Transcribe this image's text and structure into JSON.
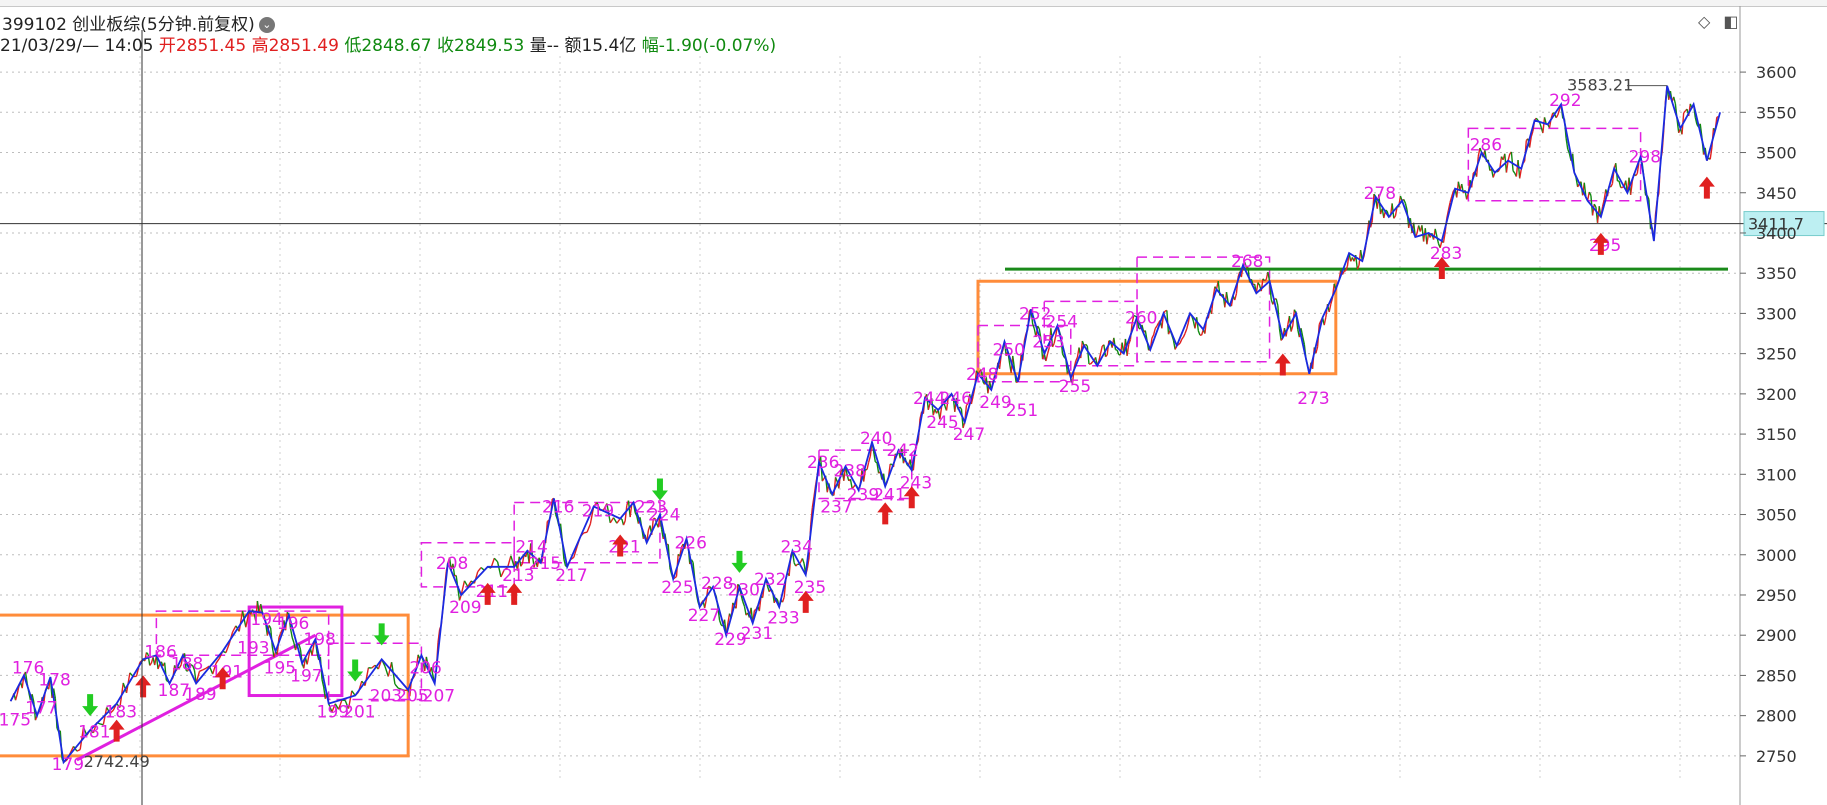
{
  "header": {
    "symbol": "399102 创业板综(5分钟.前复权)",
    "dropdown_glyph": "⌄",
    "time_label": "21/03/29/— 14:05",
    "open_label": "开",
    "open_value": "2851.45",
    "high_label": "高",
    "high_value": "2851.49",
    "low_label": "低",
    "low_value": "2848.67",
    "close_label": "收",
    "close_value": "2849.53",
    "volume_label": "量--",
    "amount_label": "额",
    "amount_value": "15.4亿",
    "change_label": "幅",
    "change_value": "-1.90(-0.07%)"
  },
  "toolbar": {
    "diamond_icon": "◇",
    "panel_icon": "◧"
  },
  "colors": {
    "up": "#e02020",
    "down": "#108a10",
    "price_line": "#1a2ae0",
    "wave_label": "#e020e0",
    "box_orange": "#ff8c3a",
    "box_magenta": "#e020e0",
    "support_line": "#1a8a1a",
    "crosshair": "#333333",
    "price_tag_bg": "#bdeff2"
  },
  "chart_data": {
    "type": "line",
    "title": "399102 创业板综(5分钟.前复权)",
    "ylim": [
      2720,
      3620
    ],
    "y_ticks": [
      2750,
      2800,
      2850,
      2900,
      2950,
      3000,
      3050,
      3100,
      3150,
      3200,
      3250,
      3300,
      3350,
      3400,
      3450,
      3500,
      3550,
      3600
    ],
    "crosshair_value": "3411.7",
    "support_level": 3355,
    "high_annotation": {
      "x": 300,
      "value": 3583.21,
      "label": "3583.21"
    },
    "low_annotation": {
      "x": 179,
      "value": 2742.49,
      "label": "2742.49"
    },
    "series": [
      {
        "name": "",
        "points": [
          {
            "x": 175,
            "y": 2818
          },
          {
            "x": 176,
            "y": 2850
          },
          {
            "x": 177,
            "y": 2800
          },
          {
            "x": 178,
            "y": 2848
          },
          {
            "x": 179,
            "y": 2742
          },
          {
            "x": 181,
            "y": 2782
          },
          {
            "x": 183,
            "y": 2815
          },
          {
            "x": 185,
            "y": 2870
          },
          {
            "x": 186,
            "y": 2875
          },
          {
            "x": 187,
            "y": 2840
          },
          {
            "x": 188,
            "y": 2875
          },
          {
            "x": 189,
            "y": 2840
          },
          {
            "x": 191,
            "y": 2880
          },
          {
            "x": 193,
            "y": 2930
          },
          {
            "x": 194,
            "y": 2928
          },
          {
            "x": 195,
            "y": 2880
          },
          {
            "x": 196,
            "y": 2925
          },
          {
            "x": 197,
            "y": 2865
          },
          {
            "x": 198,
            "y": 2895
          },
          {
            "x": 199,
            "y": 2815
          },
          {
            "x": 201,
            "y": 2825
          },
          {
            "x": 203,
            "y": 2870
          },
          {
            "x": 205,
            "y": 2832
          },
          {
            "x": 206,
            "y": 2875
          },
          {
            "x": 207,
            "y": 2840
          },
          {
            "x": 208,
            "y": 2990
          },
          {
            "x": 209,
            "y": 2950
          },
          {
            "x": 211,
            "y": 2985
          },
          {
            "x": 213,
            "y": 2985
          },
          {
            "x": 214,
            "y": 3005
          },
          {
            "x": 215,
            "y": 2990
          },
          {
            "x": 216,
            "y": 3070
          },
          {
            "x": 217,
            "y": 2985
          },
          {
            "x": 219,
            "y": 3060
          },
          {
            "x": 221,
            "y": 3045
          },
          {
            "x": 222,
            "y": 3065
          },
          {
            "x": 223,
            "y": 3015
          },
          {
            "x": 224,
            "y": 3050
          },
          {
            "x": 225,
            "y": 2970
          },
          {
            "x": 226,
            "y": 3020
          },
          {
            "x": 227,
            "y": 2935
          },
          {
            "x": 228,
            "y": 2960
          },
          {
            "x": 229,
            "y": 2900
          },
          {
            "x": 230,
            "y": 2960
          },
          {
            "x": 231,
            "y": 2915
          },
          {
            "x": 232,
            "y": 2970
          },
          {
            "x": 233,
            "y": 2935
          },
          {
            "x": 234,
            "y": 3005
          },
          {
            "x": 235,
            "y": 2975
          },
          {
            "x": 236,
            "y": 3115
          },
          {
            "x": 237,
            "y": 3075
          },
          {
            "x": 238,
            "y": 3110
          },
          {
            "x": 239,
            "y": 3080
          },
          {
            "x": 240,
            "y": 3140
          },
          {
            "x": 241,
            "y": 3085
          },
          {
            "x": 242,
            "y": 3130
          },
          {
            "x": 243,
            "y": 3105
          },
          {
            "x": 244,
            "y": 3195
          },
          {
            "x": 245,
            "y": 3180
          },
          {
            "x": 246,
            "y": 3200
          },
          {
            "x": 247,
            "y": 3165
          },
          {
            "x": 248,
            "y": 3225
          },
          {
            "x": 249,
            "y": 3205
          },
          {
            "x": 250,
            "y": 3265
          },
          {
            "x": 251,
            "y": 3215
          },
          {
            "x": 252,
            "y": 3305
          },
          {
            "x": 253,
            "y": 3250
          },
          {
            "x": 254,
            "y": 3285
          },
          {
            "x": 255,
            "y": 3220
          },
          {
            "x": 256,
            "y": 3260
          },
          {
            "x": 257,
            "y": 3235
          },
          {
            "x": 258,
            "y": 3265
          },
          {
            "x": 259,
            "y": 3250
          },
          {
            "x": 260,
            "y": 3295
          },
          {
            "x": 261,
            "y": 3255
          },
          {
            "x": 262,
            "y": 3300
          },
          {
            "x": 263,
            "y": 3260
          },
          {
            "x": 264,
            "y": 3300
          },
          {
            "x": 265,
            "y": 3280
          },
          {
            "x": 266,
            "y": 3330
          },
          {
            "x": 267,
            "y": 3310
          },
          {
            "x": 268,
            "y": 3360
          },
          {
            "x": 269,
            "y": 3325
          },
          {
            "x": 270,
            "y": 3340
          },
          {
            "x": 271,
            "y": 3270
          },
          {
            "x": 272,
            "y": 3300
          },
          {
            "x": 273,
            "y": 3225
          },
          {
            "x": 274,
            "y": 3295
          },
          {
            "x": 275,
            "y": 3330
          },
          {
            "x": 276,
            "y": 3375
          },
          {
            "x": 277,
            "y": 3365
          },
          {
            "x": 278,
            "y": 3445
          },
          {
            "x": 279,
            "y": 3420
          },
          {
            "x": 280,
            "y": 3440
          },
          {
            "x": 281,
            "y": 3395
          },
          {
            "x": 282,
            "y": 3400
          },
          {
            "x": 283,
            "y": 3390
          },
          {
            "x": 284,
            "y": 3455
          },
          {
            "x": 285,
            "y": 3450
          },
          {
            "x": 286,
            "y": 3500
          },
          {
            "x": 287,
            "y": 3475
          },
          {
            "x": 288,
            "y": 3490
          },
          {
            "x": 289,
            "y": 3480
          },
          {
            "x": 290,
            "y": 3540
          },
          {
            "x": 291,
            "y": 3535
          },
          {
            "x": 292,
            "y": 3560
          },
          {
            "x": 293,
            "y": 3475
          },
          {
            "x": 294,
            "y": 3440
          },
          {
            "x": 295,
            "y": 3420
          },
          {
            "x": 296,
            "y": 3480
          },
          {
            "x": 297,
            "y": 3450
          },
          {
            "x": 298,
            "y": 3495
          },
          {
            "x": 299,
            "y": 3390
          },
          {
            "x": 300,
            "y": 3583
          },
          {
            "x": 301,
            "y": 3530
          },
          {
            "x": 302,
            "y": 3560
          },
          {
            "x": 303,
            "y": 3490
          },
          {
            "x": 304,
            "y": 3550
          }
        ]
      }
    ],
    "wave_labels": [
      {
        "text": "175",
        "x": 175,
        "y": 2795
      },
      {
        "text": "176",
        "x": 176,
        "y": 2860
      },
      {
        "text": "177",
        "x": 177,
        "y": 2810
      },
      {
        "text": "178",
        "x": 178,
        "y": 2845
      },
      {
        "text": "179",
        "x": 179,
        "y": 2740
      },
      {
        "text": "181",
        "x": 181,
        "y": 2780
      },
      {
        "text": "183",
        "x": 183,
        "y": 2805
      },
      {
        "text": "186",
        "x": 186,
        "y": 2880
      },
      {
        "text": "187",
        "x": 187,
        "y": 2832
      },
      {
        "text": "188",
        "x": 188,
        "y": 2865
      },
      {
        "text": "189",
        "x": 189,
        "y": 2827
      },
      {
        "text": "191",
        "x": 191,
        "y": 2855
      },
      {
        "text": "193",
        "x": 193,
        "y": 2885
      },
      {
        "text": "194",
        "x": 194,
        "y": 2920
      },
      {
        "text": "195",
        "x": 195,
        "y": 2860
      },
      {
        "text": "196",
        "x": 196,
        "y": 2915
      },
      {
        "text": "197",
        "x": 197,
        "y": 2850
      },
      {
        "text": "198",
        "x": 198,
        "y": 2895
      },
      {
        "text": "199",
        "x": 199,
        "y": 2805
      },
      {
        "text": "201",
        "x": 201,
        "y": 2805
      },
      {
        "text": "203",
        "x": 203,
        "y": 2825
      },
      {
        "text": "205",
        "x": 205,
        "y": 2825
      },
      {
        "text": "206",
        "x": 206,
        "y": 2860
      },
      {
        "text": "207",
        "x": 207,
        "y": 2825
      },
      {
        "text": "208",
        "x": 208,
        "y": 2990
      },
      {
        "text": "209",
        "x": 209,
        "y": 2935
      },
      {
        "text": "211",
        "x": 211,
        "y": 2955
      },
      {
        "text": "213",
        "x": 213,
        "y": 2975
      },
      {
        "text": "214",
        "x": 214,
        "y": 3010
      },
      {
        "text": "215",
        "x": 215,
        "y": 2990
      },
      {
        "text": "216",
        "x": 216,
        "y": 3060
      },
      {
        "text": "217",
        "x": 217,
        "y": 2975
      },
      {
        "text": "219",
        "x": 219,
        "y": 3055
      },
      {
        "text": "221",
        "x": 221,
        "y": 3010
      },
      {
        "text": "223",
        "x": 223,
        "y": 3060
      },
      {
        "text": "224",
        "x": 224,
        "y": 3050
      },
      {
        "text": "225",
        "x": 225,
        "y": 2960
      },
      {
        "text": "226",
        "x": 226,
        "y": 3015
      },
      {
        "text": "227",
        "x": 227,
        "y": 2925
      },
      {
        "text": "228",
        "x": 228,
        "y": 2965
      },
      {
        "text": "229",
        "x": 229,
        "y": 2895
      },
      {
        "text": "230",
        "x": 230,
        "y": 2957
      },
      {
        "text": "231",
        "x": 231,
        "y": 2903
      },
      {
        "text": "232",
        "x": 232,
        "y": 2970
      },
      {
        "text": "233",
        "x": 233,
        "y": 2922
      },
      {
        "text": "234",
        "x": 234,
        "y": 3010
      },
      {
        "text": "235",
        "x": 235,
        "y": 2960
      },
      {
        "text": "236",
        "x": 236,
        "y": 3115
      },
      {
        "text": "237",
        "x": 237,
        "y": 3060
      },
      {
        "text": "238",
        "x": 238,
        "y": 3105
      },
      {
        "text": "239",
        "x": 239,
        "y": 3075
      },
      {
        "text": "240",
        "x": 240,
        "y": 3145
      },
      {
        "text": "241",
        "x": 241,
        "y": 3075
      },
      {
        "text": "242",
        "x": 242,
        "y": 3130
      },
      {
        "text": "243",
        "x": 243,
        "y": 3090
      },
      {
        "text": "244",
        "x": 244,
        "y": 3195
      },
      {
        "text": "245",
        "x": 245,
        "y": 3165
      },
      {
        "text": "246",
        "x": 246,
        "y": 3195
      },
      {
        "text": "247",
        "x": 247,
        "y": 3150
      },
      {
        "text": "248",
        "x": 248,
        "y": 3225
      },
      {
        "text": "249",
        "x": 249,
        "y": 3190
      },
      {
        "text": "250",
        "x": 250,
        "y": 3255
      },
      {
        "text": "251",
        "x": 251,
        "y": 3180
      },
      {
        "text": "252",
        "x": 252,
        "y": 3300
      },
      {
        "text": "253",
        "x": 253,
        "y": 3265
      },
      {
        "text": "254",
        "x": 254,
        "y": 3290
      },
      {
        "text": "255",
        "x": 255,
        "y": 3210
      },
      {
        "text": "260",
        "x": 260,
        "y": 3295
      },
      {
        "text": "268",
        "x": 268,
        "y": 3365
      },
      {
        "text": "273",
        "x": 273,
        "y": 3195
      },
      {
        "text": "278",
        "x": 278,
        "y": 3450
      },
      {
        "text": "283",
        "x": 283,
        "y": 3375
      },
      {
        "text": "286",
        "x": 286,
        "y": 3510
      },
      {
        "text": "292",
        "x": 292,
        "y": 3565
      },
      {
        "text": "295",
        "x": 295,
        "y": 3385
      },
      {
        "text": "298",
        "x": 298,
        "y": 3495
      }
    ],
    "buy_signals": [
      183,
      185,
      191,
      211,
      213,
      221,
      235,
      241,
      243,
      271,
      283,
      295,
      303
    ],
    "sell_signals": [
      181,
      201,
      203,
      224,
      230
    ],
    "boxes": [
      {
        "kind": "orange",
        "x0": 174,
        "x1": 205,
        "y0": 2750,
        "y1": 2925
      },
      {
        "kind": "orange",
        "x0": 248,
        "x1": 275,
        "y0": 3225,
        "y1": 3340
      },
      {
        "kind": "magenta",
        "x0": 193,
        "x1": 200,
        "y0": 2825,
        "y1": 2935
      },
      {
        "kind": "magenta-dash",
        "x0": 186,
        "x1": 199,
        "y0": 2875,
        "y1": 2930
      },
      {
        "kind": "magenta-dash",
        "x0": 199,
        "x1": 206,
        "y0": 2820,
        "y1": 2890
      },
      {
        "kind": "magenta-dash",
        "x0": 206,
        "x1": 213,
        "y0": 2960,
        "y1": 3015
      },
      {
        "kind": "magenta-dash",
        "x0": 213,
        "x1": 224,
        "y0": 2990,
        "y1": 3065
      },
      {
        "kind": "magenta-dash",
        "x0": 236,
        "x1": 243,
        "y0": 3070,
        "y1": 3130
      },
      {
        "kind": "magenta-dash",
        "x0": 248,
        "x1": 255,
        "y0": 3215,
        "y1": 3285
      },
      {
        "kind": "magenta-dash",
        "x0": 253,
        "x1": 260,
        "y0": 3235,
        "y1": 3315
      },
      {
        "kind": "magenta-dash",
        "x0": 260,
        "x1": 270,
        "y0": 3240,
        "y1": 3370
      },
      {
        "kind": "magenta-dash",
        "x0": 285,
        "x1": 298,
        "y0": 3440,
        "y1": 3530
      }
    ],
    "trend_lines": [
      {
        "x0": 180,
        "y0": 2745,
        "x1": 198,
        "y1": 2900
      }
    ]
  }
}
